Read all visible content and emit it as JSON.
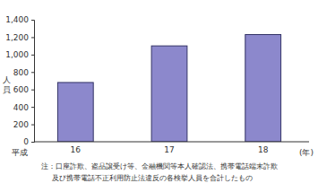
{
  "chart_data": {
    "type": "bar",
    "y_label": "人員",
    "x_label": "(年)",
    "annotations": [
      "平成"
    ],
    "note": [
      "注：口座詐欺、盗品譲受け等、金融機関等本人確認法、携帯電話端末詐欺",
      "及び携帯電話不正利用防止法違反の各検挙人員を合計したもの"
    ],
    "categories": [
      "16",
      "17",
      "18"
    ],
    "values": [
      680,
      1100,
      1230
    ],
    "color": "#8c88cc",
    "ylim": [
      0,
      1400
    ],
    "yticks": [
      0,
      200,
      400,
      600,
      800,
      {
        "value": 1000,
        "label": "1,000"
      },
      {
        "value": 1200,
        "label": "1,200"
      },
      {
        "value": 1400,
        "label": "1,400"
      }
    ],
    "grid": false
  }
}
